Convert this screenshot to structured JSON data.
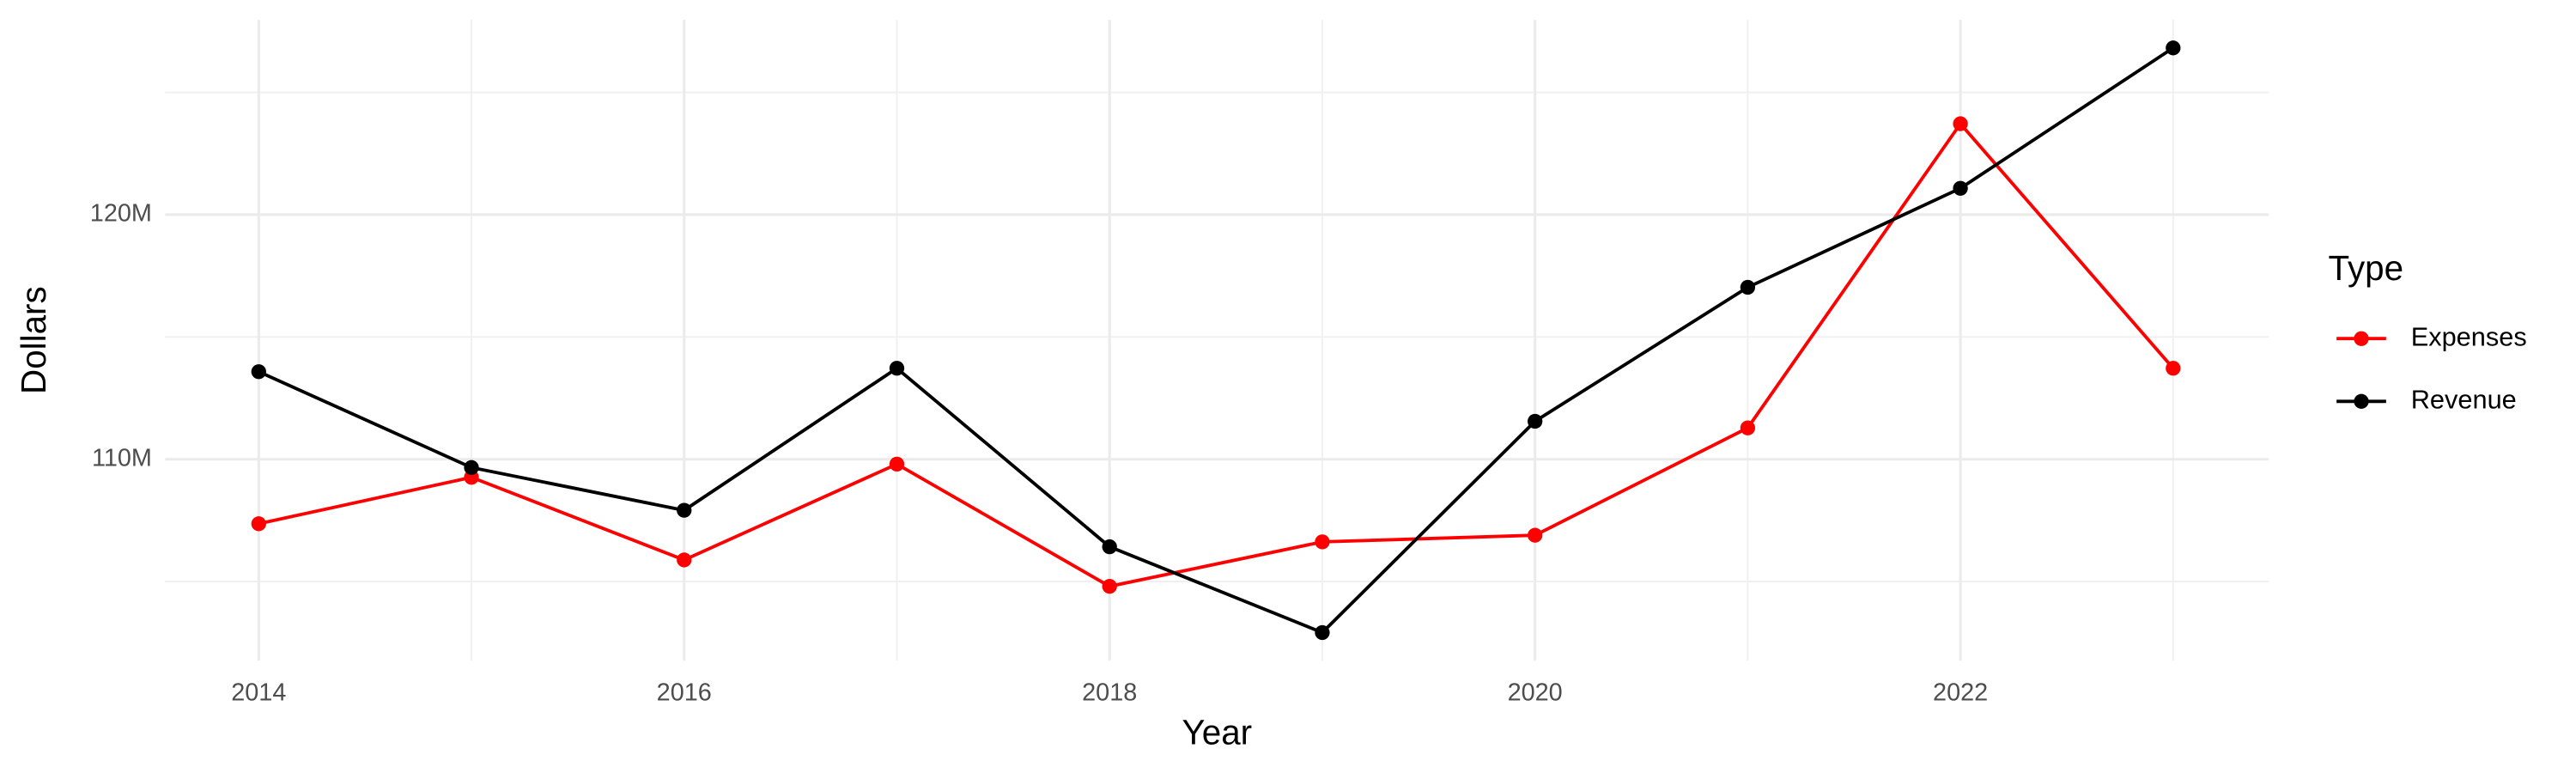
{
  "chart_data": {
    "type": "line",
    "x_label": "Year",
    "y_label": "Dollars",
    "legend_title": "Type",
    "x": [
      2014,
      2015,
      2016,
      2017,
      2018,
      2019,
      2020,
      2021,
      2022,
      2023
    ],
    "series": [
      {
        "name": "Expenses",
        "color": "#ff0000",
        "values": [
          107360000,
          109260000,
          105880000,
          109800000,
          104800000,
          106620000,
          106890000,
          111280000,
          123720000,
          113720000
        ]
      },
      {
        "name": "Revenue",
        "color": "#000000",
        "values": [
          113580000,
          109660000,
          107910000,
          113720000,
          106420000,
          102910000,
          111550000,
          117030000,
          121080000,
          126820000
        ]
      }
    ],
    "xlim": [
      2013.56,
      2023.45
    ],
    "xticks": [
      2014,
      2016,
      2018,
      2020,
      2022
    ],
    "ylim": [
      101760000,
      127970000
    ],
    "yticks": [
      {
        "value": 110000000,
        "label": "110M"
      },
      {
        "value": 120000000,
        "label": "120M"
      }
    ],
    "grid": true,
    "legend": "right"
  }
}
